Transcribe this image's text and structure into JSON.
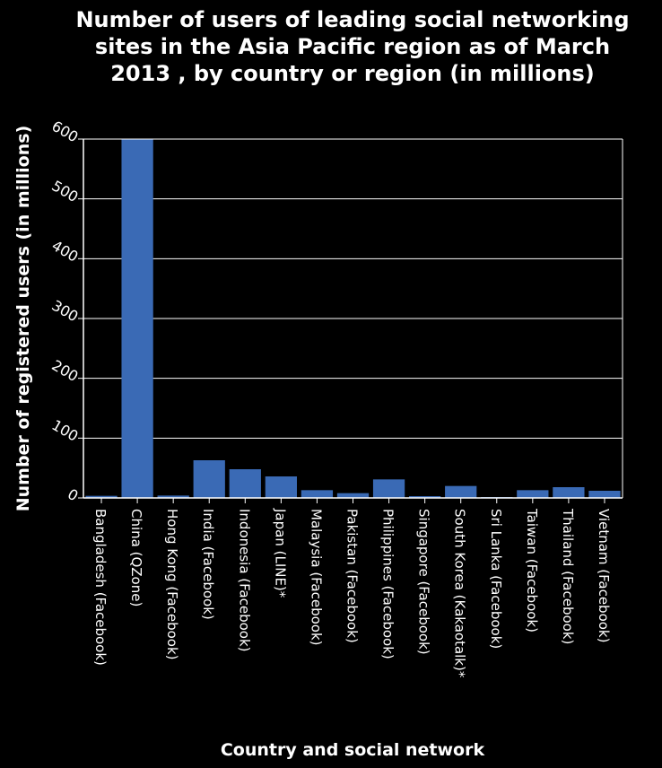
{
  "chart_data": {
    "type": "bar",
    "title": "Number of users of leading social networking sites in the Asia Pacific region as of March 2013 , by country or region (in millions)",
    "title_lines": [
      "Number of users of leading social networking",
      "sites in the Asia Pacific region as of March",
      "2013 , by country or region (in millions)"
    ],
    "xlabel": "Country and social network",
    "ylabel": "Number of registered users (in millions)",
    "ylim": [
      0,
      600
    ],
    "yticks": [
      0,
      100,
      200,
      300,
      400,
      500,
      600
    ],
    "grid": true,
    "categories": [
      "Bangladesh (Facebook)",
      "China (QZone)",
      "Hong Kong (Facebook)",
      "India (Facebook)",
      "Indonesia (Facebook)",
      "Japan (LINE)*",
      "Malaysia (Facebook)",
      "Pakistan (Facebook)",
      "Philippines (Facebook)",
      "Singapore (Facebook)",
      "South Korea (Kakaotalk)*",
      "Sri Lanka (Facebook)",
      "Taiwan (Facebook)",
      "Thailand (Facebook)",
      "Vietnam (Facebook)"
    ],
    "values": [
      3.5,
      600,
      4,
      63,
      48,
      36,
      13,
      8,
      31,
      3,
      20,
      1.5,
      13,
      18,
      12
    ],
    "colors": {
      "background": "#000000",
      "bar": "#3a6ab5",
      "text": "#ffffff",
      "grid": "#ffffff",
      "axis": "#ffffff"
    }
  }
}
